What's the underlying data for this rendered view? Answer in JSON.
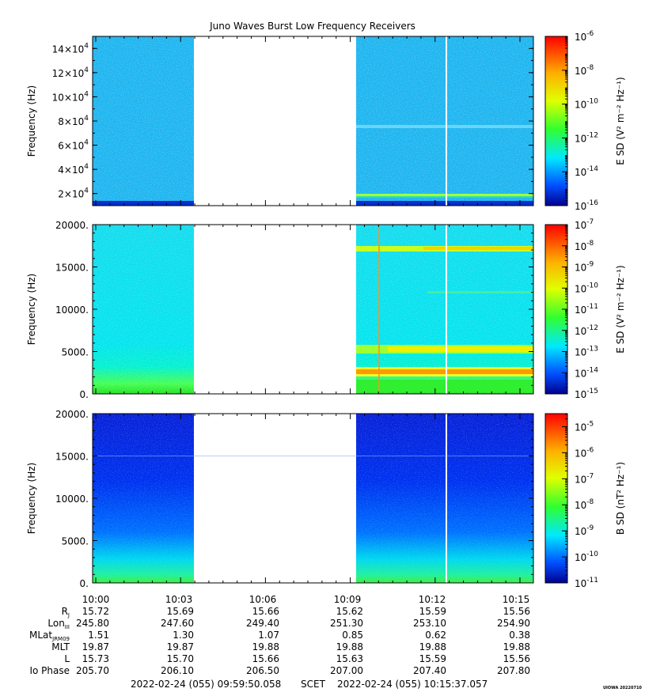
{
  "figure": {
    "title": "Juno Waves Burst Low Frequency Receivers",
    "footer_left": "2022-02-24 (055) 09:59:50.058",
    "footer_mid": "SCET",
    "footer_right": "2022-02-24 (055) 10:15:37.057",
    "credit": "UIOWA 20220710"
  },
  "chart_data": [
    {
      "type": "heatmap",
      "ylabel": "Frequency (Hz)",
      "yticks": [
        {
          "mant": "2",
          "exp": "4",
          "v": 20000
        },
        {
          "mant": "4",
          "exp": "4",
          "v": 40000
        },
        {
          "mant": "6",
          "exp": "4",
          "v": 60000
        },
        {
          "mant": "8",
          "exp": "4",
          "v": 80000
        },
        {
          "mant": "10",
          "exp": "4",
          "v": 100000
        },
        {
          "mant": "12",
          "exp": "4",
          "v": 120000
        },
        {
          "mant": "14",
          "exp": "4",
          "v": 140000
        }
      ],
      "ylim": [
        10000,
        150000
      ],
      "colorbar_label": "E SD (V² m⁻² Hz⁻¹)",
      "cbar_exps": [
        "-6",
        "-8",
        "-10",
        "-12",
        "-14",
        "-16"
      ],
      "cbar_log_range": [
        -16,
        -6
      ],
      "data_gap": [
        "10:03:40",
        "10:09:20"
      ],
      "features": "banded emission near 2x10^4 Hz after 10:09; weak line near 7.5x10^4 Hz"
    },
    {
      "type": "heatmap",
      "ylabel": "Frequency (Hz)",
      "yticks": [
        {
          "label": "20000.",
          "v": 20000
        },
        {
          "label": "15000.",
          "v": 15000
        },
        {
          "label": "10000.",
          "v": 10000
        },
        {
          "label": "5000.",
          "v": 5000
        },
        {
          "label": "0.",
          "v": 0
        }
      ],
      "ylim": [
        0,
        20000
      ],
      "colorbar_label": "E SD (V² m⁻² Hz⁻¹)",
      "cbar_exps": [
        "-7",
        "-8",
        "-9",
        "-10",
        "-11",
        "-12",
        "-13",
        "-14",
        "-15"
      ],
      "cbar_log_range": [
        -15,
        -7
      ],
      "data_gap": [
        "10:03:40",
        "10:09:20"
      ],
      "features": "emission bands near 2700 Hz, 5400 Hz and 17000 Hz after 10:09"
    },
    {
      "type": "heatmap",
      "ylabel": "Frequency (Hz)",
      "yticks": [
        {
          "label": "20000.",
          "v": 20000
        },
        {
          "label": "15000.",
          "v": 15000
        },
        {
          "label": "10000.",
          "v": 10000
        },
        {
          "label": "5000.",
          "v": 5000
        },
        {
          "label": "0.",
          "v": 0
        }
      ],
      "ylim": [
        0,
        20000
      ],
      "colorbar_label": "B SD (nT² Hz⁻¹)",
      "cbar_exps": [
        "-5",
        "-6",
        "-7",
        "-8",
        "-9",
        "-10",
        "-11"
      ],
      "cbar_log_range": [
        -11,
        -4.5
      ],
      "data_gap": [
        "10:03:40",
        "10:09:20"
      ]
    }
  ],
  "xaxis": {
    "labels": [
      "10:00",
      "10:03",
      "10:06",
      "10:09",
      "10:12",
      "10:15"
    ],
    "rows": [
      {
        "label": "R",
        "sub": "J",
        "values": [
          "15.72",
          "15.69",
          "15.66",
          "15.62",
          "15.59",
          "15.56"
        ]
      },
      {
        "label": "Lon",
        "sub": "III",
        "values": [
          "245.80",
          "247.60",
          "249.40",
          "251.30",
          "253.10",
          "254.90"
        ]
      },
      {
        "label": "MLat",
        "sub": "JRM09",
        "values": [
          "1.51",
          "1.30",
          "1.07",
          "0.85",
          "0.62",
          "0.38"
        ]
      },
      {
        "label": "MLT",
        "sub": "",
        "values": [
          "19.87",
          "19.87",
          "19.88",
          "19.88",
          "19.88",
          "19.88"
        ]
      },
      {
        "label": "L",
        "sub": "",
        "values": [
          "15.73",
          "15.70",
          "15.66",
          "15.63",
          "15.59",
          "15.56"
        ]
      },
      {
        "label": "Io Phase",
        "sub": "",
        "values": [
          "205.70",
          "206.10",
          "206.50",
          "207.00",
          "207.40",
          "207.80"
        ]
      }
    ]
  }
}
